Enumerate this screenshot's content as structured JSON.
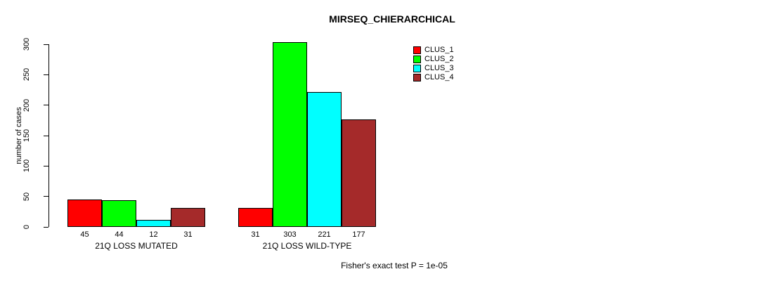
{
  "chart_data": {
    "type": "bar",
    "title": "MIRSEQ_CHIERARCHICAL",
    "xlabel": "",
    "ylabel": "number of cases",
    "ylim": [
      0,
      300
    ],
    "yticks": [
      0,
      50,
      100,
      150,
      200,
      250,
      300
    ],
    "grid": false,
    "legend_position": "top-right",
    "categories": [
      "21Q LOSS MUTATED",
      "21Q LOSS WILD-TYPE"
    ],
    "series": [
      {
        "name": "CLUS_1",
        "color": "#FF0000",
        "values": [
          45,
          31
        ]
      },
      {
        "name": "CLUS_2",
        "color": "#00FF00",
        "values": [
          44,
          303
        ]
      },
      {
        "name": "CLUS_3",
        "color": "#00FFFF",
        "values": [
          12,
          221
        ]
      },
      {
        "name": "CLUS_4",
        "color": "#A52A2A",
        "values": [
          31,
          177
        ]
      }
    ],
    "groups": [
      {
        "label": "21Q LOSS MUTATED",
        "values": [
          45,
          44,
          12,
          31
        ]
      },
      {
        "label": "21Q LOSS WILD-TYPE",
        "values": [
          31,
          303,
          221,
          177
        ]
      }
    ],
    "bar_value_labels": [
      [
        45,
        44,
        12,
        31
      ],
      [
        31,
        303,
        221,
        177
      ]
    ],
    "annotation": "Fisher's exact test P = 1e-05"
  }
}
